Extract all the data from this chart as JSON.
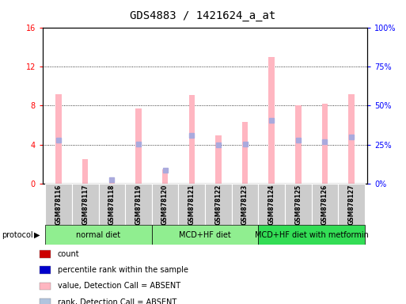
{
  "title": "GDS4883 / 1421624_a_at",
  "samples": [
    "GSM878116",
    "GSM878117",
    "GSM878118",
    "GSM878119",
    "GSM878120",
    "GSM878121",
    "GSM878122",
    "GSM878123",
    "GSM878124",
    "GSM878125",
    "GSM878126",
    "GSM878127"
  ],
  "left_ylim": [
    0,
    16
  ],
  "right_ylim": [
    0,
    100
  ],
  "left_yticks": [
    0,
    4,
    8,
    12,
    16
  ],
  "right_yticks": [
    0,
    25,
    50,
    75,
    100
  ],
  "left_yticklabels": [
    "0",
    "4",
    "8",
    "12",
    "16"
  ],
  "right_yticklabels": [
    "0%",
    "25%",
    "50%",
    "75%",
    "100%"
  ],
  "pink_bars": [
    9.2,
    2.5,
    0.3,
    7.7,
    1.5,
    9.1,
    5.0,
    6.3,
    13.0,
    8.0,
    8.2,
    9.2
  ],
  "blue_dots": [
    4.5,
    0.0,
    0.4,
    4.1,
    1.4,
    5.0,
    4.0,
    4.1,
    6.5,
    4.5,
    4.3,
    4.8
  ],
  "groups": [
    {
      "label": "normal diet",
      "start": 0,
      "end": 3,
      "color": "#90EE90"
    },
    {
      "label": "MCD+HF diet",
      "start": 4,
      "end": 7,
      "color": "#90EE90"
    },
    {
      "label": "MCD+HF diet with metformin",
      "start": 8,
      "end": 11,
      "color": "#33DD55"
    }
  ],
  "legend_items": [
    {
      "color": "#CC0000",
      "label": "count"
    },
    {
      "color": "#0000CC",
      "label": "percentile rank within the sample"
    },
    {
      "color": "#FFB6C1",
      "label": "value, Detection Call = ABSENT"
    },
    {
      "color": "#B0C4DE",
      "label": "rank, Detection Call = ABSENT"
    }
  ],
  "title_fontsize": 10,
  "tick_fontsize": 7,
  "sample_fontsize": 5.5,
  "group_fontsize": 7,
  "legend_fontsize": 7,
  "plot_bg_color": "#FFFFFF",
  "sample_bg_color": "#CCCCCC",
  "pink_color": "#FFB6C1",
  "blue_color": "#AAAADD"
}
